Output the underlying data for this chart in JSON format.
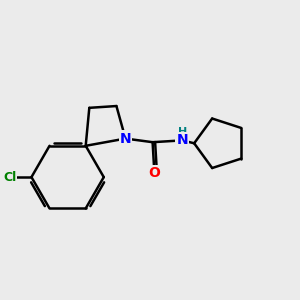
{
  "background_color": "#ebebeb",
  "bond_color": "#000000",
  "bond_width": 1.8,
  "atom_colors": {
    "N": "#0000ff",
    "O": "#ff0000",
    "Cl": "#008000",
    "H": "#008080",
    "C": "#000000"
  }
}
